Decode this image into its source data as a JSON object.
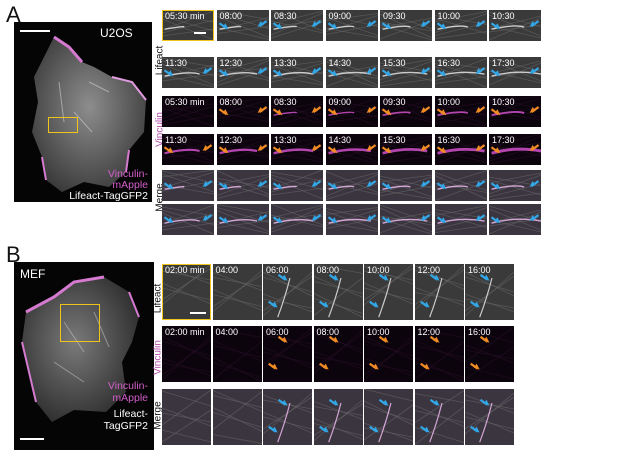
{
  "panel_a": {
    "label": "A",
    "cell_line": "U2OS",
    "legend_top": "Vinculin-",
    "legend_top2": "mApple",
    "legend_bottom": "Lifeact-TagGFP2",
    "row_labels": [
      "Lifeact",
      "Vinculin",
      "Merge"
    ],
    "times_row1": [
      "05:30 min",
      "08:00",
      "08:30",
      "09:00",
      "09:30",
      "10:00",
      "10:30"
    ],
    "times_row2": [
      "11:30",
      "12:30",
      "13:30",
      "14:30",
      "15:30",
      "16:30",
      "17:30"
    ]
  },
  "panel_b": {
    "label": "B",
    "cell_line": "MEF",
    "legend_top": "Vinculin-",
    "legend_top2": "mApple",
    "legend_bottom": "Lifeact-",
    "legend_bottom2": "TagGFP2",
    "row_labels": [
      "Lifeact",
      "Vinculin",
      "Merge"
    ],
    "times": [
      "02:00 min",
      "04:00",
      "06:00",
      "08:00",
      "10:00",
      "12:00",
      "16:00"
    ]
  },
  "colors": {
    "arrow_blue": "#33a6e6",
    "arrow_orange": "#f08a24",
    "highlight_yellow": "#f0c419",
    "vinculin_magenta": "#c44cc0"
  }
}
